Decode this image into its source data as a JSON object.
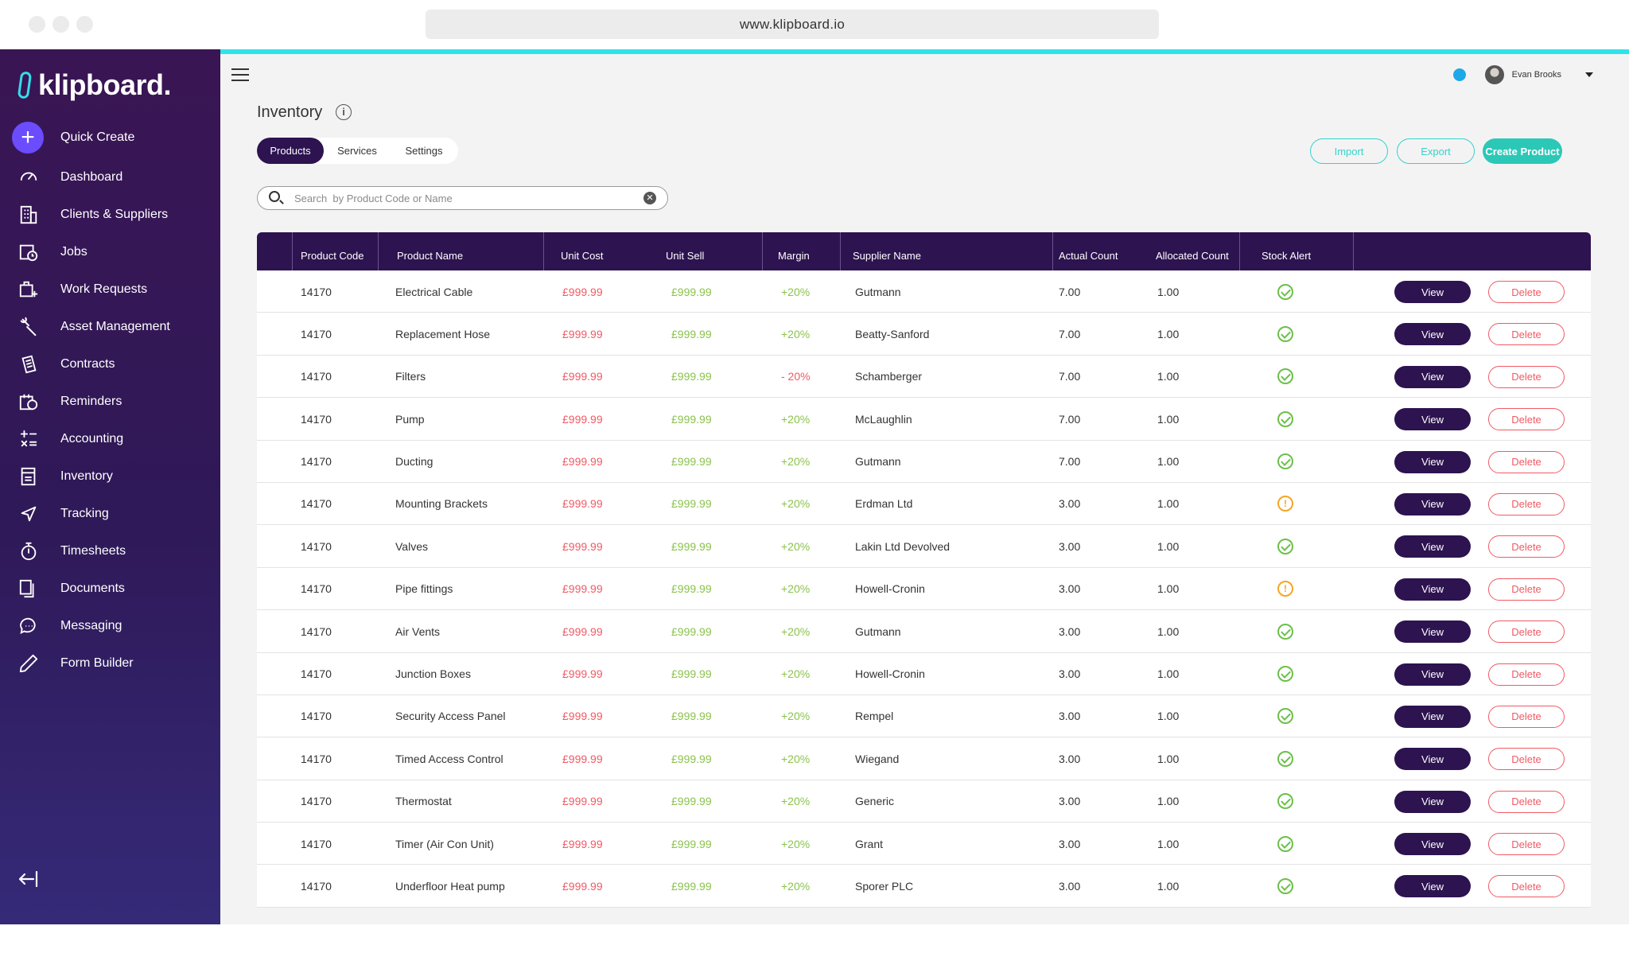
{
  "browser": {
    "url": "www.klipboard.io"
  },
  "brand": {
    "name": "klipboard.",
    "accent": "#2fe3ec",
    "sidebar_color": "#2f1958"
  },
  "sidebar": {
    "quick_create": "Quick Create",
    "items": [
      {
        "label": "Dashboard",
        "icon": "dashboard-gauge-icon"
      },
      {
        "label": "Clients & Suppliers",
        "icon": "building-icon"
      },
      {
        "label": "Jobs",
        "icon": "jobs-calendar-icon"
      },
      {
        "label": "Work Requests",
        "icon": "work-request-icon"
      },
      {
        "label": "Asset Management",
        "icon": "wrench-icon"
      },
      {
        "label": "Contracts",
        "icon": "contract-icon"
      },
      {
        "label": "Reminders",
        "icon": "reminder-icon"
      },
      {
        "label": "Accounting",
        "icon": "calculator-icon"
      },
      {
        "label": "Inventory",
        "icon": "inventory-icon"
      },
      {
        "label": "Tracking",
        "icon": "location-arrow-icon"
      },
      {
        "label": "Timesheets",
        "icon": "stopwatch-icon"
      },
      {
        "label": "Documents",
        "icon": "documents-icon"
      },
      {
        "label": "Messaging",
        "icon": "chat-bubble-icon"
      },
      {
        "label": "Form Builder",
        "icon": "pencil-icon"
      }
    ]
  },
  "header": {
    "user_name": "Evan Brooks"
  },
  "page": {
    "title": "Inventory",
    "tabs": [
      "Products",
      "Services",
      "Settings"
    ],
    "active_tab": "Products",
    "actions": {
      "import": "Import",
      "export": "Export",
      "create": "Create Product"
    },
    "search_placeholder": "Search  by Product Code or Name"
  },
  "table": {
    "columns": [
      "Product Code",
      "Product Name",
      "Unit Cost",
      "Unit Sell",
      "Margin",
      "Supplier Name",
      "Actual Count",
      "Allocated Count",
      "Stock Alert"
    ],
    "view_label": "View",
    "delete_label": "Delete",
    "rows": [
      {
        "code": "14170",
        "name": "Electrical Cable",
        "cost": "£999.99",
        "sell": "£999.99",
        "margin": "+20%",
        "supplier": "Gutmann",
        "actual": "7.00",
        "allocated": "1.00",
        "alert": "ok"
      },
      {
        "code": "14170",
        "name": "Replacement Hose",
        "cost": "£999.99",
        "sell": "£999.99",
        "margin": "+20%",
        "supplier": "Beatty-Sanford",
        "actual": "7.00",
        "allocated": "1.00",
        "alert": "ok"
      },
      {
        "code": "14170",
        "name": "Filters",
        "cost": "£999.99",
        "sell": "£999.99",
        "margin": "- 20%",
        "supplier": "Schamberger",
        "actual": "7.00",
        "allocated": "1.00",
        "alert": "ok"
      },
      {
        "code": "14170",
        "name": "Pump",
        "cost": "£999.99",
        "sell": "£999.99",
        "margin": "+20%",
        "supplier": "McLaughlin",
        "actual": "7.00",
        "allocated": "1.00",
        "alert": "ok"
      },
      {
        "code": "14170",
        "name": "Ducting",
        "cost": "£999.99",
        "sell": "£999.99",
        "margin": "+20%",
        "supplier": "Gutmann",
        "actual": "7.00",
        "allocated": "1.00",
        "alert": "ok"
      },
      {
        "code": "14170",
        "name": "Mounting Brackets",
        "cost": "£999.99",
        "sell": "£999.99",
        "margin": "+20%",
        "supplier": "Erdman Ltd",
        "actual": "3.00",
        "allocated": "1.00",
        "alert": "warning"
      },
      {
        "code": "14170",
        "name": "Valves",
        "cost": "£999.99",
        "sell": "£999.99",
        "margin": "+20%",
        "supplier": "Lakin Ltd Devolved",
        "actual": "3.00",
        "allocated": "1.00",
        "alert": "ok"
      },
      {
        "code": "14170",
        "name": "Pipe fittings",
        "cost": "£999.99",
        "sell": "£999.99",
        "margin": "+20%",
        "supplier": "Howell-Cronin",
        "actual": "3.00",
        "allocated": "1.00",
        "alert": "warning"
      },
      {
        "code": "14170",
        "name": "Air Vents",
        "cost": "£999.99",
        "sell": "£999.99",
        "margin": "+20%",
        "supplier": "Gutmann",
        "actual": "3.00",
        "allocated": "1.00",
        "alert": "ok"
      },
      {
        "code": "14170",
        "name": "Junction Boxes",
        "cost": "£999.99",
        "sell": "£999.99",
        "margin": "+20%",
        "supplier": "Howell-Cronin",
        "actual": "3.00",
        "allocated": "1.00",
        "alert": "ok"
      },
      {
        "code": "14170",
        "name": "Security Access Panel",
        "cost": "£999.99",
        "sell": "£999.99",
        "margin": "+20%",
        "supplier": "Rempel",
        "actual": "3.00",
        "allocated": "1.00",
        "alert": "ok"
      },
      {
        "code": "14170",
        "name": "Timed Access Control",
        "cost": "£999.99",
        "sell": "£999.99",
        "margin": "+20%",
        "supplier": "Wiegand",
        "actual": "3.00",
        "allocated": "1.00",
        "alert": "ok"
      },
      {
        "code": "14170",
        "name": "Thermostat",
        "cost": "£999.99",
        "sell": "£999.99",
        "margin": "+20%",
        "supplier": "Generic",
        "actual": "3.00",
        "allocated": "1.00",
        "alert": "ok"
      },
      {
        "code": "14170",
        "name": "Timer (Air Con Unit)",
        "cost": "£999.99",
        "sell": "£999.99",
        "margin": "+20%",
        "supplier": "Grant",
        "actual": "3.00",
        "allocated": "1.00",
        "alert": "ok"
      },
      {
        "code": "14170",
        "name": "Underfloor Heat pump",
        "cost": "£999.99",
        "sell": "£999.99",
        "margin": "+20%",
        "supplier": "Sporer PLC",
        "actual": "3.00",
        "allocated": "1.00",
        "alert": "ok"
      }
    ]
  }
}
